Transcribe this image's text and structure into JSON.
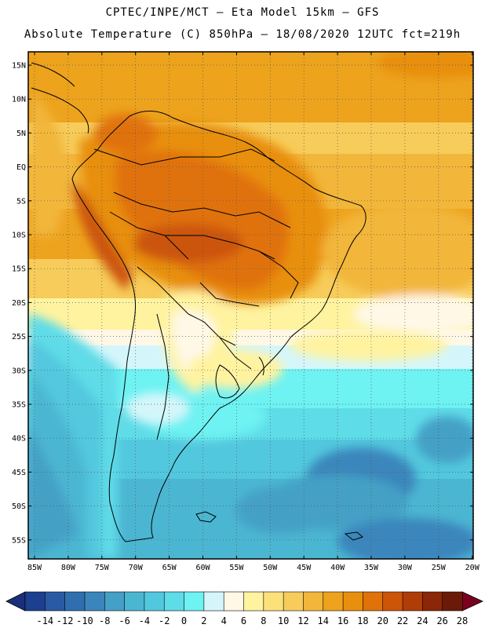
{
  "header": {
    "line1": "CPTEC/INPE/MCT –  Eta Model 15km – GFS",
    "line2": "Absolute Temperature (C) 850hPa – 18/08/2020 12UTC fct=219h"
  },
  "axes": {
    "lat_labels": [
      "15N",
      "10N",
      "5N",
      "EQ",
      "5S",
      "10S",
      "15S",
      "20S",
      "25S",
      "30S",
      "35S",
      "40S",
      "45S",
      "50S",
      "55S"
    ],
    "lon_labels": [
      "85W",
      "80W",
      "75W",
      "70W",
      "65W",
      "60W",
      "55W",
      "50W",
      "45W",
      "40W",
      "35W",
      "30W",
      "25W",
      "20W"
    ]
  },
  "colorbar": {
    "labels": [
      "-14",
      "-12",
      "-10",
      "-8",
      "-6",
      "-4",
      "-2",
      "0",
      "2",
      "4",
      "6",
      "8",
      "10",
      "12",
      "14",
      "16",
      "18",
      "20",
      "22",
      "24",
      "26",
      "28"
    ],
    "colors": [
      "#1c3f8f",
      "#2a5aa3",
      "#2f6fb0",
      "#3a86bc",
      "#44a0c6",
      "#4bb6d2",
      "#52c8de",
      "#5edce8",
      "#6ef2f2",
      "#d4f6fa",
      "#fff8e6",
      "#fff3a0",
      "#fce17a",
      "#f7cc5a",
      "#f2b63a",
      "#eda31e",
      "#e88f0e",
      "#e0720a",
      "#cc5508",
      "#b03c08",
      "#8c2608",
      "#6b1a08"
    ],
    "under_color": "#1b2f7a",
    "over_color": "#7a0020"
  }
}
